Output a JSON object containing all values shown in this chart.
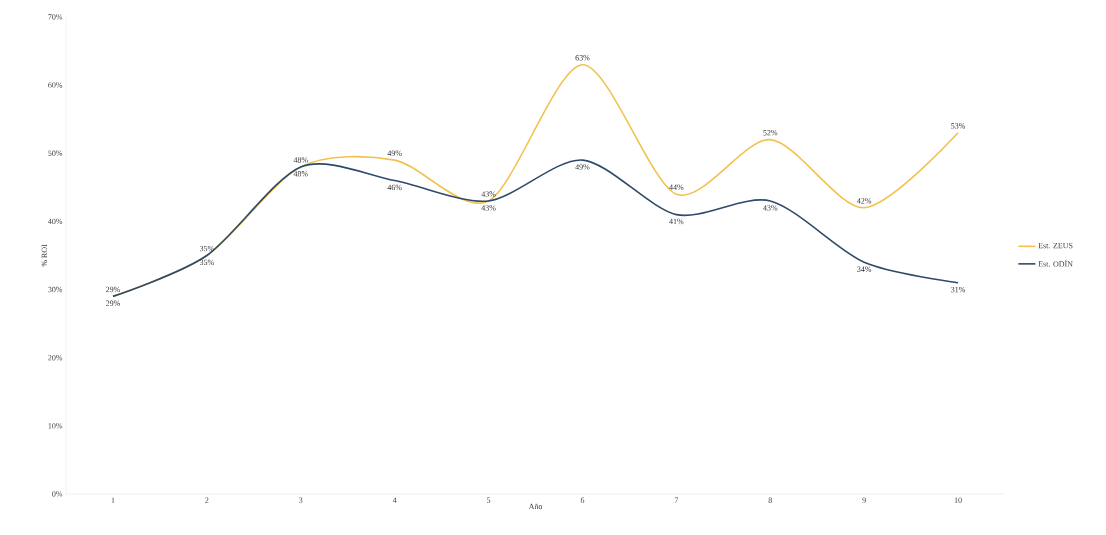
{
  "chart_data": {
    "type": "line",
    "xlabel": "Año",
    "ylabel": "% ROI",
    "categories": [
      "1",
      "2",
      "3",
      "4",
      "5",
      "6",
      "7",
      "8",
      "9",
      "10"
    ],
    "ylim": [
      0,
      70
    ],
    "yticks": [
      {
        "value": 0,
        "label": "0%"
      },
      {
        "value": 10,
        "label": "10%"
      },
      {
        "value": 20,
        "label": "20%"
      },
      {
        "value": 30,
        "label": "30%"
      },
      {
        "value": 40,
        "label": "40%"
      },
      {
        "value": 50,
        "label": "50%"
      },
      {
        "value": 60,
        "label": "60%"
      },
      {
        "value": 70,
        "label": "70%"
      }
    ],
    "grid": false,
    "legend": "right",
    "marker": "none",
    "line_style": "solid",
    "series": [
      {
        "name": "Est. ZEUS",
        "color": "#f2c14e",
        "values": [
          29,
          35,
          48,
          49,
          43,
          63,
          44,
          52,
          42,
          53
        ],
        "value_labels": [
          "29%",
          "35%",
          "48%",
          "49%",
          "43%",
          "63%",
          "44%",
          "52%",
          "42%",
          "53%"
        ]
      },
      {
        "name": "Est. ODÍN",
        "color": "#2e4a6b",
        "values": [
          29,
          35,
          48,
          46,
          43,
          49,
          41,
          43,
          34,
          31
        ],
        "value_labels": [
          "29%",
          "35%",
          "48%",
          "46%",
          "43%",
          "49%",
          "41%",
          "43%",
          "34%",
          "31%"
        ]
      }
    ]
  }
}
